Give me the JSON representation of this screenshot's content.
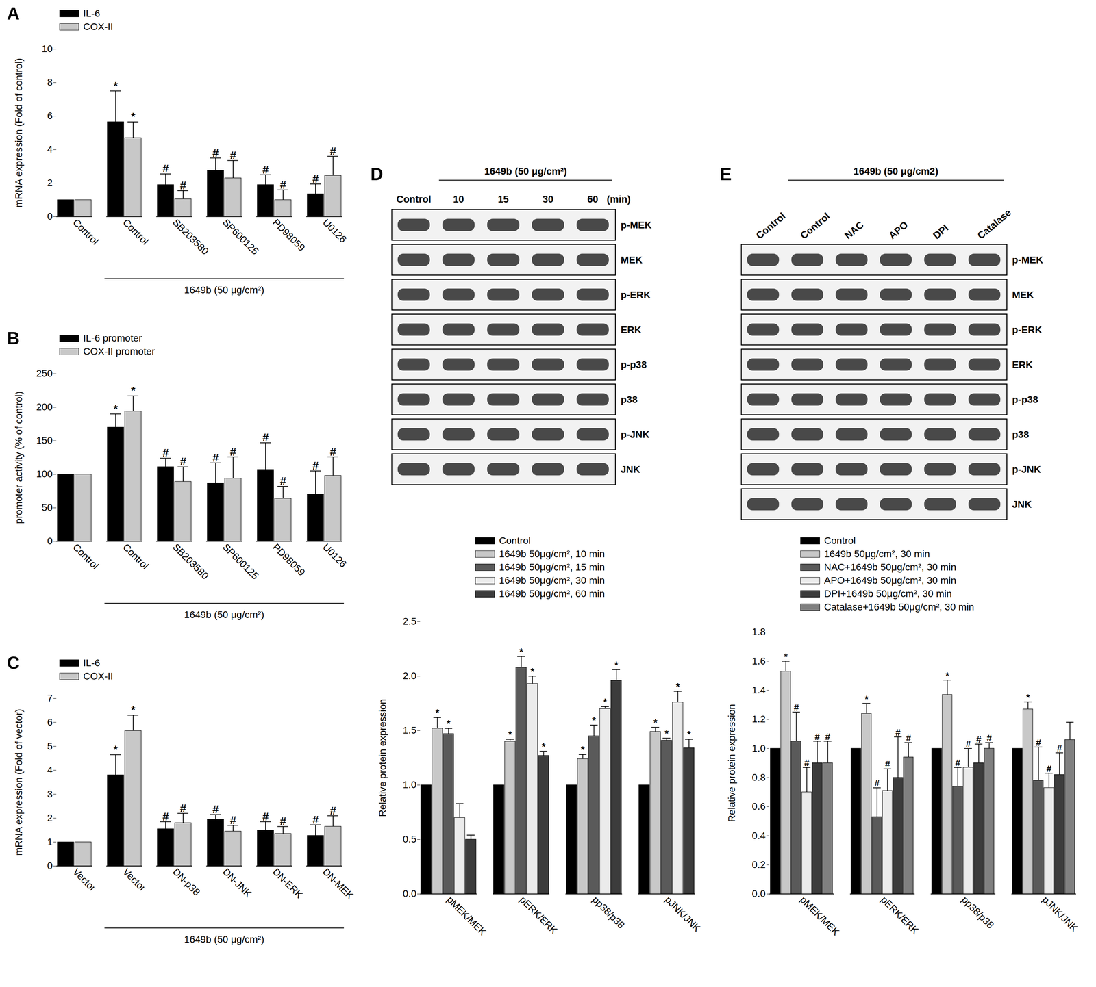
{
  "chart_data": [
    {
      "type": "bar",
      "panel": "A",
      "categories": [
        "Control",
        "Control",
        "SB203580",
        "SP600125",
        "PD98059",
        "U0126"
      ],
      "group_label": "1649b (50 μg/cm²)",
      "y_label": "mRNA expression (Fold of control)",
      "ylim": [
        0,
        10
      ],
      "yticks": [
        0,
        2,
        4,
        6,
        8,
        10
      ],
      "legend": "top-left",
      "series": [
        {
          "name": "IL-6",
          "color": "#000000",
          "values": [
            1,
            5.65,
            1.9,
            2.75,
            1.9,
            1.35
          ],
          "errors": [
            0,
            1.85,
            0.65,
            0.75,
            0.6,
            0.6
          ],
          "marks": [
            null,
            "*",
            "#",
            "#",
            "#",
            "#"
          ]
        },
        {
          "name": "COX-II",
          "color": "#c8c8c8",
          "values": [
            1,
            4.7,
            1.05,
            2.3,
            1.0,
            2.45
          ],
          "errors": [
            0,
            0.95,
            0.5,
            1.05,
            0.6,
            1.15
          ],
          "marks": [
            null,
            "*",
            "#",
            "#",
            "#",
            "#"
          ]
        }
      ]
    },
    {
      "type": "bar",
      "panel": "B",
      "categories": [
        "Control",
        "Control",
        "SB203580",
        "SP600125",
        "PD98059",
        "U0126"
      ],
      "group_label": "1649b (50 μg/cm²)",
      "y_label": "promoter activity (% of control)",
      "ylim": [
        0,
        250
      ],
      "yticks": [
        0,
        50,
        100,
        150,
        200,
        250
      ],
      "legend": "top-left",
      "series": [
        {
          "name": "IL-6 promoter",
          "color": "#000000",
          "values": [
            100,
            170,
            111,
            87,
            107,
            70
          ],
          "errors": [
            0,
            20,
            13,
            30,
            40,
            35
          ],
          "marks": [
            null,
            "*",
            "#",
            "#",
            "#",
            "#"
          ]
        },
        {
          "name": "COX-II promoter",
          "color": "#c8c8c8",
          "values": [
            100,
            194,
            89,
            94,
            64,
            98
          ],
          "errors": [
            0,
            23,
            22,
            32,
            18,
            28
          ],
          "marks": [
            null,
            "*",
            "#",
            "#",
            "#",
            "#"
          ]
        }
      ]
    },
    {
      "type": "bar",
      "panel": "C",
      "categories": [
        "Vector",
        "Vector",
        "DN-p38",
        "DN-JNK",
        "DN-ERK",
        "DN-MEK"
      ],
      "group_label": "1649b (50 μg/cm²)",
      "y_label": "mRNA expression (Fold of vector)",
      "ylim": [
        0,
        7
      ],
      "yticks": [
        0,
        1,
        2,
        3,
        4,
        5,
        6,
        7
      ],
      "legend": "top-left",
      "series": [
        {
          "name": "IL-6",
          "color": "#000000",
          "values": [
            1,
            3.8,
            1.55,
            1.95,
            1.5,
            1.27
          ],
          "errors": [
            0,
            0.85,
            0.3,
            0.2,
            0.35,
            0.45
          ],
          "marks": [
            null,
            "*",
            "#",
            "#",
            "#",
            "#"
          ]
        },
        {
          "name": "COX-II",
          "color": "#c8c8c8",
          "values": [
            1,
            5.65,
            1.8,
            1.45,
            1.35,
            1.65
          ],
          "errors": [
            0,
            0.65,
            0.4,
            0.25,
            0.3,
            0.45
          ],
          "marks": [
            null,
            "*",
            "#",
            "#",
            "#",
            "#"
          ]
        }
      ]
    },
    {
      "type": "bar",
      "panel": "D",
      "categories": [
        "pMEK/MEK",
        "pERK/ERK",
        "pp38/p38",
        "pJNK/JNK"
      ],
      "y_label": "Relative protein expression",
      "ylim": [
        0,
        2.5
      ],
      "yticks": [
        {
          "value": 0,
          "label": "0.0"
        },
        {
          "value": 0.5,
          "label": "0.5"
        },
        {
          "value": 1,
          "label": "1.0"
        },
        {
          "value": 1.5,
          "label": "1.5"
        },
        {
          "value": 2,
          "label": "2.0"
        },
        {
          "value": 2.5,
          "label": "2.5"
        }
      ],
      "legend": "top",
      "series": [
        {
          "name": "Control",
          "color": "#000000",
          "values": [
            1,
            1,
            1,
            1
          ],
          "errors": [
            0,
            0,
            0,
            0
          ],
          "marks": [
            null,
            null,
            null,
            null
          ]
        },
        {
          "name": "1649b 50μg/cm², 10 min",
          "color": "#c8c8c8",
          "values": [
            1.52,
            1.4,
            1.24,
            1.49
          ],
          "errors": [
            0.1,
            0.02,
            0.04,
            0.04
          ],
          "marks": [
            "*",
            "*",
            "*",
            "*"
          ]
        },
        {
          "name": "1649b 50μg/cm², 15 min",
          "color": "#5a5a5a",
          "values": [
            1.47,
            2.08,
            1.45,
            1.41
          ],
          "errors": [
            0.05,
            0.1,
            0.1,
            0.02
          ],
          "marks": [
            "*",
            "*",
            "*",
            "*"
          ]
        },
        {
          "name": "1649b 50μg/cm², 30 min",
          "color": "#ebebeb",
          "values": [
            0.7,
            1.93,
            1.7,
            1.76
          ],
          "errors": [
            0.13,
            0.07,
            0.02,
            0.1
          ],
          "marks": [
            null,
            "*",
            "*",
            "*"
          ]
        },
        {
          "name": "1649b 50μg/cm², 60 min",
          "color": "#3c3c3c",
          "values": [
            0.5,
            1.27,
            1.96,
            1.34
          ],
          "errors": [
            0.04,
            0.04,
            0.1,
            0.08
          ],
          "marks": [
            null,
            "*",
            "*",
            "*"
          ]
        }
      ]
    },
    {
      "type": "bar",
      "panel": "E",
      "categories": [
        "pMEK/MEK",
        "pERK/ERK",
        "pp38/p38",
        "pJNK/JNK"
      ],
      "y_label": "Relative protein expression",
      "ylim": [
        0,
        1.8
      ],
      "yticks": [
        {
          "value": 0,
          "label": "0.0"
        },
        {
          "value": 0.2,
          "label": "0.2"
        },
        {
          "value": 0.4,
          "label": "0.4"
        },
        {
          "value": 0.6,
          "label": "0.6"
        },
        {
          "value": 0.8,
          "label": "0.8"
        },
        {
          "value": 1,
          "label": "1.0"
        },
        {
          "value": 1.2,
          "label": "1.2"
        },
        {
          "value": 1.4,
          "label": "1.4"
        },
        {
          "value": 1.6,
          "label": "1.6"
        },
        {
          "value": 1.8,
          "label": "1.8"
        }
      ],
      "legend": "top",
      "series": [
        {
          "name": "Control",
          "color": "#000000",
          "values": [
            1,
            1,
            1,
            1
          ],
          "errors": [
            0,
            0,
            0,
            0
          ],
          "marks": [
            null,
            null,
            null,
            null
          ]
        },
        {
          "name": "1649b 50μg/cm², 30 min",
          "color": "#c8c8c8",
          "values": [
            1.53,
            1.24,
            1.37,
            1.27
          ],
          "errors": [
            0.07,
            0.07,
            0.1,
            0.05
          ],
          "marks": [
            "*",
            "*",
            "*",
            "*"
          ]
        },
        {
          "name": "NAC+1649b 50μg/cm², 30 min",
          "color": "#5a5a5a",
          "values": [
            1.05,
            0.53,
            0.74,
            0.78
          ],
          "errors": [
            0.2,
            0.2,
            0.13,
            0.23
          ],
          "marks": [
            "#",
            "#",
            "#",
            "#"
          ]
        },
        {
          "name": "APO+1649b 50μg/cm², 30 min",
          "color": "#ebebeb",
          "values": [
            0.7,
            0.71,
            0.87,
            0.73
          ],
          "errors": [
            0.17,
            0.15,
            0.13,
            0.1
          ],
          "marks": [
            "#",
            "#",
            "#",
            "#"
          ]
        },
        {
          "name": "DPI+1649b 50μg/cm², 30 min",
          "color": "#3c3c3c",
          "values": [
            0.9,
            0.8,
            0.9,
            0.82
          ],
          "errors": [
            0.15,
            0.28,
            0.13,
            0.15
          ],
          "marks": [
            "#",
            "#",
            "#",
            "#"
          ]
        },
        {
          "name": "Catalase+1649b 50μg/cm², 30 min",
          "color": "#808080",
          "values": [
            0.9,
            0.94,
            1.0,
            1.06
          ],
          "errors": [
            0.15,
            0.1,
            0.04,
            0.12
          ],
          "marks": [
            "#",
            "#",
            "#",
            null
          ]
        }
      ]
    }
  ],
  "blots": [
    {
      "panel": "D",
      "title": "1649b (50 μg/cm²)",
      "lanes": [
        "Control",
        "10",
        "15",
        "30",
        "60"
      ],
      "lane_unit": "(min)",
      "proteins": [
        "p-MEK",
        "MEK",
        "p-ERK",
        "ERK",
        "p-p38",
        "p38",
        "p-JNK",
        "JNK"
      ]
    },
    {
      "panel": "E",
      "title": "1649b (50 μg/cm2)",
      "lanes": [
        "Control",
        "Control",
        "NAC",
        "APO",
        "DPI",
        "Catalase"
      ],
      "proteins": [
        "p-MEK",
        "MEK",
        "p-ERK",
        "ERK",
        "p-p38",
        "p38",
        "p-JNK",
        "JNK"
      ]
    }
  ]
}
